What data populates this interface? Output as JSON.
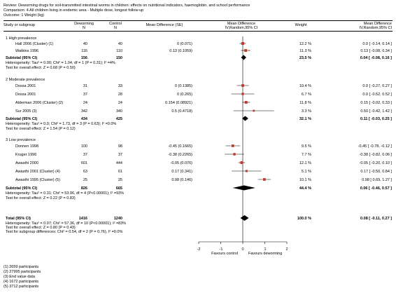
{
  "header": {
    "review": "Review:   Deworming drugs for soil-transmitted intestinal worms in children: effects on nutritional indicators, haemoglobin, and school performance",
    "comparison": "Comparison:   4 All children living in endemic area - Multiple dose, longest follow-up",
    "outcome": "Outcome:   1 Weight (kg)"
  },
  "columns": {
    "study": "Study or subgroup",
    "deworm1": "Deworming",
    "deworm2": "N",
    "control1": "Control",
    "control2": "N",
    "md": "Mean Difference (SE)",
    "forest1": "Mean Difference",
    "forest2": "IV,Random,95% CI",
    "weight": "Weight",
    "ci1": "Mean Difference",
    "ci2": "IV,Random,95% CI"
  },
  "groups": [
    {
      "title": "1 High prevalence",
      "studies": [
        {
          "name": "Hall 2006 (Cluster) (1)",
          "n1": "40",
          "n2": "40",
          "md": "0 (0.071)",
          "weight": "12.2 %",
          "ci": "0.0 [ -0.14, 0.14 ]"
        },
        {
          "name": "Watkins 1996",
          "n1": "116",
          "n2": "110",
          "md": "0.13 (0.1059)",
          "weight": "11.3 %",
          "ci": "0.13 [ -0.08, 0.34 ]"
        }
      ],
      "subtotal": {
        "label": "Subtotal (95% CI)",
        "n1": "156",
        "n2": "150",
        "weight": "23.5 %",
        "ci": "0.04 [ -0.08, 0.16 ]"
      },
      "het": "Heterogeneity: Tau² = 0.00; Chi² = 1.04, df = 1 (P = 0.31); I² =4%",
      "test": "Test for overall effect: Z = 0.68 (P = 0.50)"
    },
    {
      "title": "2 Moderate prevalence",
      "studies": [
        {
          "name": "Dossa 2001",
          "n1": "31",
          "n2": "33",
          "md": "0 (0.1385)",
          "weight": "10.4 %",
          "ci": "0.0 [ -0.27, 0.27 ]"
        },
        {
          "name": "Dossa 2001",
          "n1": "37",
          "n2": "28",
          "md": "0 (0.265)",
          "weight": "6.7 %",
          "ci": "0.0 [ -0.52, 0.52 ]"
        },
        {
          "name": "Alderman 2006 (Cluster) (2)",
          "n1": "24",
          "n2": "24",
          "md": "0.154 (0.08921)",
          "weight": "11.8 %",
          "ci": "0.15 [ -0.02, 0.33 ]"
        },
        {
          "name": "Sur 2005 (3)",
          "n1": "342",
          "n2": "340",
          "md": "0.5 (0.4718)",
          "weight": "3.3 %",
          "ci": "0.50 [ -0.42, 1.42 ]"
        }
      ],
      "subtotal": {
        "label": "Subtotal (95% CI)",
        "n1": "434",
        "n2": "425",
        "weight": "32.1 %",
        "ci": "0.11 [ -0.03, 0.25 ]"
      },
      "het": "Heterogeneity: Tau² = 0.0; Chi² = 1.73, df = 3 (P = 0.63); I² =0.0%",
      "test": "Test for overall effect: Z = 1.54 (P = 0.12)"
    },
    {
      "title": "3 Low prevalence",
      "studies": [
        {
          "name": "Donnen 1998",
          "n1": "100",
          "n2": "98",
          "md": "-0.45 (0.1665)",
          "weight": "9.5 %",
          "ci": "-0.45 [ -0.78, -0.12 ]"
        },
        {
          "name": "Kruger 1996",
          "n1": "37",
          "n2": "37",
          "md": "-0.38 (0.2265)",
          "weight": "7.7 %",
          "ci": "-0.38 [ -0.82, 0.06 ]"
        },
        {
          "name": "Awasthi 2000",
          "n1": "601",
          "n2": "444",
          "md": "-0.05 (0.076)",
          "weight": "12.1 %",
          "ci": "-0.05 [ -0.20, 0.10 ]"
        },
        {
          "name": "Awasthi 2001 (Cluster) (4)",
          "n1": "63",
          "n2": "61",
          "md": "0.17 (0.341)",
          "weight": "5.1 %",
          "ci": "0.17 [ -0.50, 0.84 ]"
        },
        {
          "name": "Awasthi 1995 (Cluster) (5)",
          "n1": "25",
          "n2": "25",
          "md": "0.98 (0.146)",
          "weight": "10.1 %",
          "ci": "0.98 [ 0.69, 1.27 ]"
        }
      ],
      "subtotal": {
        "label": "Subtotal (95% CI)",
        "n1": "826",
        "n2": "665",
        "weight": "44.4 %",
        "ci": "0.06 [ -0.46, 0.57 ]"
      },
      "het": "Heterogeneity: Tau² = 0.31; Chi² = 53.96, df = 4 (P<0.00001); I² =93%",
      "test": "Test for overall effect: Z = 0.22 (P = 0.83)"
    }
  ],
  "total": {
    "label": "Total (95% CI)",
    "n1": "1416",
    "n2": "1240",
    "weight": "100.0 %",
    "ci": "0.08 [ -0.11, 0.27 ]",
    "het": "Heterogeneity: Tau² = 0.07; Chi² = 57.36, df = 10 (P<0.00001); I² =83%",
    "test": "Test for overall effect: Z = 0.80 (P = 0.43)",
    "subgroup": "Test for subgroup differences: Chi² = 0.54, df = 2 (P = 0.76), I² =0.0%"
  },
  "axis": {
    "ticks": [
      "-2",
      "-1",
      "0",
      "1",
      "2"
    ],
    "left_label": "Favours control",
    "right_label": "Favours deworming"
  },
  "footnotes": [
    "(1) 2659 participants",
    "(2) 27995 participants",
    "(3) End value data",
    "(4) 1672 participants",
    "(5) 3712 participants"
  ],
  "chart_data": {
    "type": "scatter",
    "x_range": [
      -2,
      2
    ],
    "null_line": 0,
    "studies": [
      {
        "group": "1 High prevalence",
        "name": "Hall 2006 (Cluster) (1)",
        "estimate": 0.0,
        "ci": [
          -0.14,
          0.14
        ],
        "weight": 12.2
      },
      {
        "group": "1 High prevalence",
        "name": "Watkins 1996",
        "estimate": 0.13,
        "ci": [
          -0.08,
          0.34
        ],
        "weight": 11.3
      },
      {
        "group": "2 Moderate prevalence",
        "name": "Dossa 2001",
        "estimate": 0.0,
        "ci": [
          -0.27,
          0.27
        ],
        "weight": 10.4
      },
      {
        "group": "2 Moderate prevalence",
        "name": "Dossa 2001",
        "estimate": 0.0,
        "ci": [
          -0.52,
          0.52
        ],
        "weight": 6.7
      },
      {
        "group": "2 Moderate prevalence",
        "name": "Alderman 2006 (Cluster) (2)",
        "estimate": 0.15,
        "ci": [
          -0.02,
          0.33
        ],
        "weight": 11.8
      },
      {
        "group": "2 Moderate prevalence",
        "name": "Sur 2005 (3)",
        "estimate": 0.5,
        "ci": [
          -0.42,
          1.42
        ],
        "weight": 3.3
      },
      {
        "group": "3 Low prevalence",
        "name": "Donnen 1998",
        "estimate": -0.45,
        "ci": [
          -0.78,
          -0.12
        ],
        "weight": 9.5
      },
      {
        "group": "3 Low prevalence",
        "name": "Kruger 1996",
        "estimate": -0.38,
        "ci": [
          -0.82,
          0.06
        ],
        "weight": 7.7
      },
      {
        "group": "3 Low prevalence",
        "name": "Awasthi 2000",
        "estimate": -0.05,
        "ci": [
          -0.2,
          0.1
        ],
        "weight": 12.1
      },
      {
        "group": "3 Low prevalence",
        "name": "Awasthi 2001 (Cluster) (4)",
        "estimate": 0.17,
        "ci": [
          -0.5,
          0.84
        ],
        "weight": 5.1
      },
      {
        "group": "3 Low prevalence",
        "name": "Awasthi 1995 (Cluster) (5)",
        "estimate": 0.98,
        "ci": [
          0.69,
          1.27
        ],
        "weight": 10.1
      }
    ],
    "subtotals": [
      {
        "group": "1 High prevalence",
        "estimate": 0.04,
        "ci": [
          -0.08,
          0.16
        ]
      },
      {
        "group": "2 Moderate prevalence",
        "estimate": 0.11,
        "ci": [
          -0.03,
          0.25
        ]
      },
      {
        "group": "3 Low prevalence",
        "estimate": 0.06,
        "ci": [
          -0.46,
          0.57
        ]
      }
    ],
    "total": {
      "estimate": 0.08,
      "ci": [
        -0.11,
        0.27
      ]
    }
  },
  "colors": {
    "marker": "#c0392b",
    "diamond": "#000000",
    "line": "#000000"
  }
}
